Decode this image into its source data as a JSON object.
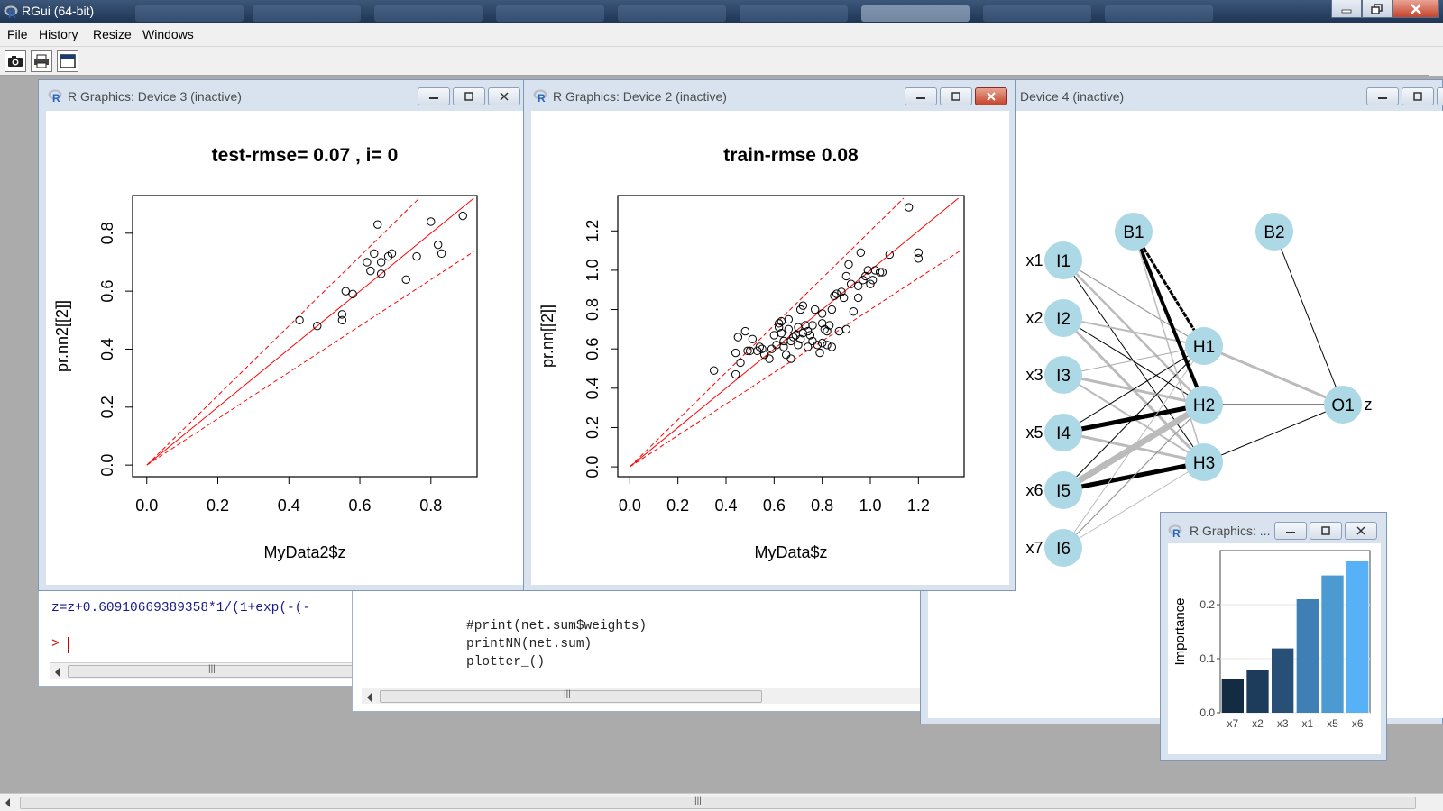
{
  "app": {
    "title": "RGui (64-bit)"
  },
  "menu": {
    "items": [
      "File",
      "History",
      "Resize",
      "Windows"
    ]
  },
  "toolbar": {
    "buttons": [
      "camera-icon",
      "print-icon",
      "console-icon"
    ]
  },
  "console_left": {
    "lines": [
      "z=z+0.60910669389358*1/(1+exp(-(-"
    ],
    "prompt": ">"
  },
  "console_mid": {
    "lines": [
      "#print(net.sum$weights)",
      "printNN(net.sum)",
      "plotter_()"
    ]
  },
  "device3": {
    "title": "R Graphics: Device 3 (inactive)",
    "chart_data": {
      "type": "scatter",
      "title": "test-rmse= 0.07 , i= 0",
      "xlabel": "MyData2$z",
      "ylabel": "pr.nn2[[2]]",
      "xlim": [
        -0.04,
        0.93
      ],
      "ylim": [
        -0.04,
        0.93
      ],
      "xticks": [
        "0.0",
        "0.2",
        "0.4",
        "0.6",
        "0.8"
      ],
      "yticks": [
        "0.0",
        "0.2",
        "0.4",
        "0.6",
        "0.8"
      ],
      "x": [
        0.43,
        0.48,
        0.55,
        0.55,
        0.56,
        0.58,
        0.62,
        0.63,
        0.64,
        0.65,
        0.66,
        0.66,
        0.68,
        0.69,
        0.73,
        0.76,
        0.8,
        0.82,
        0.83,
        0.89
      ],
      "y": [
        0.5,
        0.48,
        0.52,
        0.5,
        0.6,
        0.59,
        0.7,
        0.67,
        0.73,
        0.83,
        0.66,
        0.7,
        0.72,
        0.73,
        0.64,
        0.72,
        0.84,
        0.76,
        0.73,
        0.86
      ],
      "lines": [
        {
          "style": "solid",
          "color": "#ff0000",
          "slope": 1.0
        },
        {
          "style": "dashed",
          "color": "#ff0000",
          "slope": 1.2
        },
        {
          "style": "dashed",
          "color": "#ff0000",
          "slope": 0.8
        }
      ]
    }
  },
  "device2": {
    "title": "R Graphics: Device 2 (inactive)",
    "chart_data": {
      "type": "scatter",
      "title": "train-rmse 0.08",
      "xlabel": "MyData$z",
      "ylabel": "pr.nn[[2]]",
      "xlim": [
        -0.05,
        1.39
      ],
      "ylim": [
        -0.05,
        1.38
      ],
      "xticks": [
        "0.0",
        "0.2",
        "0.4",
        "0.6",
        "0.8",
        "1.0",
        "1.2"
      ],
      "yticks": [
        "0.0",
        "0.2",
        "0.4",
        "0.6",
        "0.8",
        "1.0",
        "1.2"
      ],
      "x": [
        0.35,
        0.44,
        0.44,
        0.45,
        0.46,
        0.48,
        0.49,
        0.5,
        0.51,
        0.53,
        0.54,
        0.55,
        0.56,
        0.58,
        0.59,
        0.6,
        0.61,
        0.62,
        0.63,
        0.64,
        0.65,
        0.66,
        0.67,
        0.68,
        0.7,
        0.7,
        0.71,
        0.72,
        0.73,
        0.74,
        0.75,
        0.76,
        0.77,
        0.78,
        0.79,
        0.8,
        0.8,
        0.81,
        0.82,
        0.83,
        0.84,
        0.85,
        0.86,
        0.87,
        0.88,
        0.89,
        0.9,
        0.91,
        0.92,
        0.93,
        0.95,
        0.96,
        0.97,
        0.98,
        0.99,
        1.0,
        1.01,
        1.02,
        1.04,
        1.05,
        1.08,
        1.16,
        1.2,
        1.2,
        0.62,
        0.63,
        0.66,
        0.69,
        0.72,
        0.74,
        0.8,
        0.82,
        0.71,
        0.76,
        0.84,
        0.9,
        0.95,
        0.64,
        0.67
      ],
      "y": [
        0.49,
        0.47,
        0.58,
        0.66,
        0.53,
        0.69,
        0.59,
        0.59,
        0.65,
        0.59,
        0.61,
        0.6,
        0.57,
        0.55,
        0.6,
        0.67,
        0.62,
        0.71,
        0.68,
        0.64,
        0.57,
        0.7,
        0.64,
        0.66,
        0.71,
        0.62,
        0.8,
        0.68,
        0.72,
        0.61,
        0.67,
        0.64,
        0.8,
        0.62,
        0.58,
        0.63,
        0.73,
        0.7,
        0.69,
        0.72,
        0.8,
        0.87,
        0.88,
        0.69,
        0.89,
        0.86,
        0.97,
        1.03,
        0.93,
        0.79,
        0.92,
        1.09,
        0.95,
        0.97,
        1.0,
        0.93,
        0.95,
        1.0,
        0.99,
        0.99,
        1.08,
        1.32,
        1.09,
        1.06,
        0.73,
        0.74,
        0.75,
        0.67,
        0.82,
        0.69,
        0.78,
        0.62,
        0.65,
        0.72,
        0.61,
        0.7,
        0.86,
        0.61,
        0.55
      ],
      "lines": [
        {
          "style": "solid",
          "color": "#ff0000",
          "slope": 1.0
        },
        {
          "style": "dashed",
          "color": "#ff0000",
          "slope": 1.2
        },
        {
          "style": "dashed",
          "color": "#ff0000",
          "slope": 0.8
        }
      ]
    }
  },
  "device4": {
    "title": "Device 4 (inactive)",
    "network": {
      "input_labels": [
        "x1",
        "x2",
        "x3",
        "x5",
        "x6",
        "x7"
      ],
      "inputs": [
        "I1",
        "I2",
        "I3",
        "I4",
        "I5",
        "I6"
      ],
      "bias": [
        "B1",
        "B2"
      ],
      "hidden": [
        "H1",
        "H2",
        "H3"
      ],
      "output": "O1",
      "output_label": "z",
      "node_color": "#add8e6"
    }
  },
  "small_device": {
    "title": "R Graphics: ...",
    "chart_data": {
      "type": "bar",
      "categories": [
        "x7",
        "x2",
        "x3",
        "x1",
        "x5",
        "x6"
      ],
      "values": [
        0.062,
        0.079,
        0.119,
        0.21,
        0.254,
        0.28
      ],
      "ylabel": "Importance",
      "ylim": [
        0,
        0.3
      ],
      "yticks": [
        "0.0",
        "0.1",
        "0.2"
      ],
      "colors": [
        "#132b43",
        "#1d3c5c",
        "#284f75",
        "#3e80b6",
        "#4b9ad2",
        "#56b1f7"
      ]
    }
  }
}
